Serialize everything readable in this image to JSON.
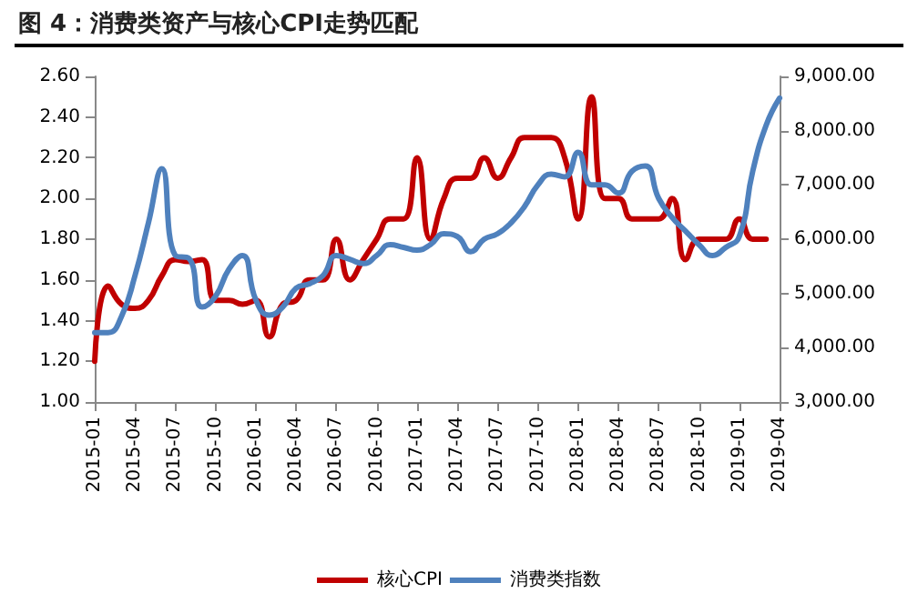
{
  "chart_data": {
    "type": "line",
    "title": "图 4：消费类资产与核心CPI走势匹配",
    "categories": [
      "2015-01",
      null,
      null,
      "2015-04",
      null,
      null,
      "2015-07",
      null,
      null,
      "2015-10",
      null,
      null,
      "2016-01",
      null,
      null,
      "2016-04",
      null,
      null,
      "2016-07",
      null,
      null,
      "2016-10",
      null,
      null,
      "2017-01",
      null,
      null,
      "2017-04",
      null,
      null,
      "2017-07",
      null,
      null,
      "2017-10",
      null,
      null,
      "2018-01",
      null,
      null,
      "2018-04",
      null,
      null,
      "2018-07",
      null,
      null,
      "2018-10",
      null,
      null,
      "2019-01",
      null,
      null,
      "2019-04"
    ],
    "series": [
      {
        "name": "核心CPI",
        "color": "#c00000",
        "values": [
          1.2,
          1.57,
          1.48,
          1.46,
          1.5,
          1.62,
          1.7,
          1.69,
          1.7,
          1.5,
          1.5,
          1.48,
          1.5,
          1.32,
          1.48,
          1.5,
          1.6,
          1.6,
          1.8,
          1.6,
          1.7,
          1.8,
          1.9,
          1.9,
          2.2,
          1.8,
          2.0,
          2.1,
          2.1,
          2.2,
          2.1,
          2.2,
          2.3,
          2.3,
          2.3,
          2.2,
          1.9,
          2.5,
          2.0,
          2.0,
          1.9,
          1.9,
          1.9,
          2.0,
          1.7,
          1.8,
          1.8,
          1.8,
          1.9,
          1.8,
          1.8,
          null
        ]
      },
      {
        "name": "消费类指数",
        "color": "#4f81bd",
        "axis": "y2",
        "values": [
          4280,
          4280,
          4580,
          5330,
          6300,
          7300,
          5700,
          5650,
          4750,
          4950,
          5450,
          5700,
          4880,
          4600,
          4750,
          5100,
          5180,
          5330,
          5700,
          5630,
          5550,
          5700,
          5900,
          5850,
          5800,
          5900,
          6100,
          6050,
          5770,
          6000,
          6100,
          6300,
          6600,
          7000,
          7200,
          7150,
          7600,
          7000,
          7000,
          6850,
          7250,
          7350,
          6750,
          6400,
          6150,
          5900,
          5700,
          5850,
          6050,
          7250,
          8100,
          8600
        ]
      }
    ],
    "ylim": [
      1.0,
      2.6
    ],
    "yticks": [
      {
        "value": 1.0,
        "label": "1.00"
      },
      {
        "value": 1.2,
        "label": "1.20"
      },
      {
        "value": 1.4,
        "label": "1.40"
      },
      {
        "value": 1.6,
        "label": "1.60"
      },
      {
        "value": 1.8,
        "label": "1.80"
      },
      {
        "value": 2.0,
        "label": "2.00"
      },
      {
        "value": 2.2,
        "label": "2.20"
      },
      {
        "value": 2.4,
        "label": "2.40"
      },
      {
        "value": 2.6,
        "label": "2.60"
      }
    ],
    "y2lim": [
      3000,
      9000
    ],
    "y2ticks": [
      {
        "value": 3000,
        "label": "3,000.00"
      },
      {
        "value": 4000,
        "label": "4,000.00"
      },
      {
        "value": 5000,
        "label": "5,000.00"
      },
      {
        "value": 6000,
        "label": "6,000.00"
      },
      {
        "value": 7000,
        "label": "7,000.00"
      },
      {
        "value": 8000,
        "label": "8,000.00"
      },
      {
        "value": 9000,
        "label": "9,000.00"
      }
    ],
    "grid": false,
    "legend": "bottom",
    "marker": "none",
    "line_style": "solid"
  }
}
